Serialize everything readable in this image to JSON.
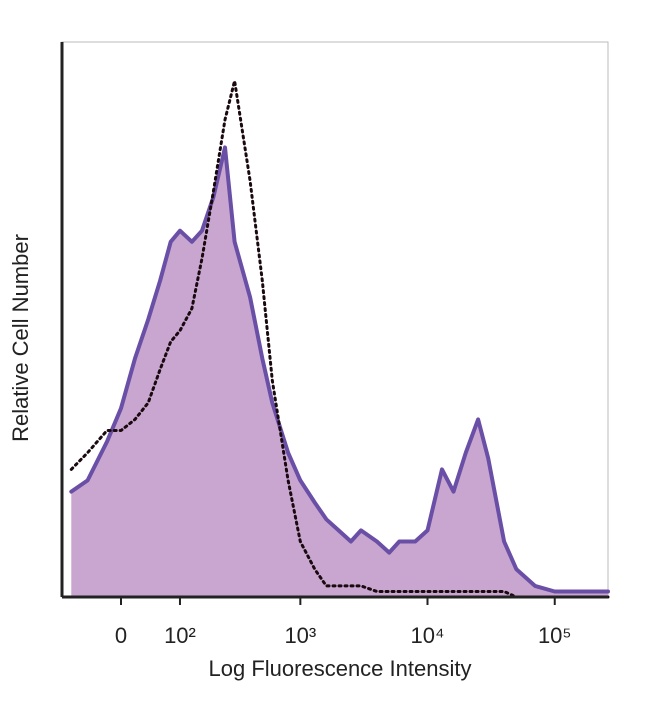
{
  "chart_data": {
    "type": "histogram-overlay",
    "x_label": "Log Fluorescence Intensity",
    "y_label": "Relative Cell Number",
    "x_scale": "biexponential",
    "x": [
      -80,
      -50,
      -20,
      0,
      20,
      40,
      60,
      80,
      100,
      130,
      160,
      200,
      250,
      300,
      400,
      500,
      600,
      800,
      1000,
      1300,
      1600,
      2000,
      2500,
      3000,
      4000,
      5000,
      6000,
      8000,
      10000,
      13000,
      16000,
      20000,
      25000,
      30000,
      40000,
      50000,
      70000,
      100000,
      150000,
      262144
    ],
    "series": [
      {
        "color": "#6a4fa6",
        "fill": "#c8a6cf",
        "style": "solid",
        "values": [
          19,
          21,
          28,
          34,
          43,
          50,
          57,
          64,
          66,
          64,
          66,
          72,
          81,
          64,
          54,
          43,
          35,
          26,
          21,
          17,
          14,
          12,
          10,
          12,
          10,
          8,
          10,
          10,
          12,
          23,
          19,
          26,
          32,
          25,
          10,
          5,
          2,
          1,
          1,
          1
        ]
      },
      {
        "color": "#1a0a10",
        "style": "dotted",
        "values": [
          23,
          26,
          30,
          30,
          32,
          35,
          41,
          46,
          48,
          52,
          61,
          73,
          86,
          93,
          75,
          57,
          39,
          21,
          10,
          5,
          2,
          2,
          2,
          2,
          1,
          1,
          1,
          1,
          1,
          1,
          1,
          1,
          1,
          1,
          1,
          0,
          0,
          0,
          0,
          0
        ]
      }
    ],
    "xlim": [
      -100,
      262144
    ],
    "ylim": [
      0,
      100
    ],
    "xticks": [
      0,
      {
        "value": 100,
        "label": "10²"
      },
      {
        "value": 1000,
        "label": "10³"
      },
      {
        "value": 10000,
        "label": "10⁴"
      },
      {
        "value": 100000,
        "label": "10⁵"
      }
    ]
  }
}
